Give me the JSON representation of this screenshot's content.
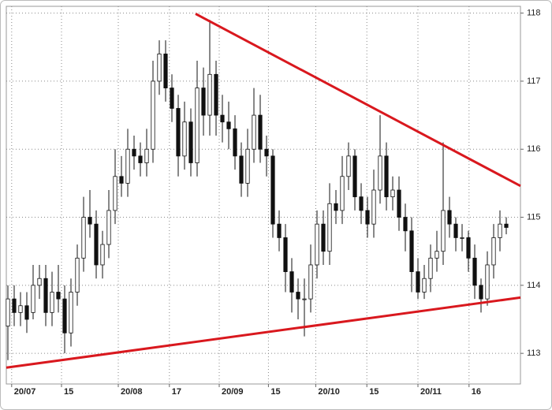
{
  "chart_data": {
    "type": "candlestick",
    "open": [
      113.4,
      113.8,
      113.6,
      113.7,
      113.6,
      114.0,
      114.1,
      113.6,
      113.9,
      113.8,
      113.3,
      113.9,
      114.4,
      115.0,
      114.9,
      114.3,
      114.6,
      115.1,
      115.6,
      115.5,
      116.0,
      115.9,
      115.8,
      116.0,
      117.0,
      117.4,
      116.9,
      116.6,
      115.9,
      116.4,
      115.8,
      116.9,
      116.5,
      117.1,
      116.5,
      116.4,
      116.3,
      115.9,
      115.5,
      116.0,
      116.5,
      116.0,
      115.9,
      114.9,
      114.7,
      114.2,
      113.9,
      113.8,
      113.8,
      114.3,
      114.9,
      114.5,
      115.2,
      115.1,
      115.6,
      115.9,
      115.3,
      115.1,
      114.9,
      115.4,
      115.9,
      115.3,
      115.4,
      115.0,
      114.8,
      114.2,
      113.9,
      114.1,
      114.4,
      114.5,
      115.1,
      114.9,
      114.7,
      114.7,
      114.4,
      114.0,
      113.8,
      114.3,
      114.7,
      114.9
    ],
    "high": [
      114.0,
      114.0,
      113.9,
      113.9,
      114.3,
      114.3,
      114.3,
      114.2,
      114.3,
      114.0,
      114.1,
      114.6,
      115.3,
      115.4,
      115.1,
      114.8,
      115.4,
      116.0,
      115.9,
      116.3,
      116.2,
      116.1,
      116.3,
      117.3,
      117.6,
      117.6,
      117.1,
      116.8,
      116.7,
      116.6,
      117.3,
      117.2,
      117.9,
      117.3,
      116.8,
      116.7,
      116.5,
      116.1,
      116.3,
      116.9,
      116.8,
      116.2,
      116.0,
      115.1,
      114.9,
      114.4,
      114.1,
      114.1,
      114.6,
      115.1,
      115.1,
      115.5,
      115.4,
      115.9,
      116.1,
      116.0,
      115.5,
      115.3,
      115.7,
      116.5,
      116.1,
      115.6,
      115.6,
      115.2,
      115.0,
      114.4,
      114.3,
      114.6,
      114.8,
      116.1,
      115.3,
      115.0,
      114.9,
      114.8,
      114.6,
      114.1,
      114.5,
      114.9,
      115.1,
      115.0
    ],
    "low": [
      112.9,
      113.4,
      113.4,
      113.3,
      113.5,
      113.8,
      113.4,
      113.4,
      113.6,
      113.0,
      113.1,
      113.7,
      114.2,
      114.7,
      114.1,
      114.1,
      114.4,
      114.9,
      115.3,
      115.3,
      115.7,
      115.6,
      115.6,
      115.8,
      116.8,
      116.7,
      116.4,
      115.6,
      115.7,
      115.6,
      115.6,
      116.2,
      116.2,
      116.2,
      116.1,
      116.0,
      115.7,
      115.3,
      115.3,
      115.8,
      115.8,
      115.6,
      114.7,
      114.5,
      113.9,
      113.6,
      113.5,
      113.25,
      113.6,
      114.1,
      114.3,
      114.3,
      114.9,
      114.9,
      115.4,
      115.1,
      114.9,
      114.7,
      114.7,
      115.2,
      115.1,
      115.1,
      114.8,
      114.5,
      113.9,
      113.8,
      113.8,
      113.9,
      114.2,
      114.3,
      114.7,
      114.5,
      114.5,
      114.2,
      113.8,
      113.6,
      113.7,
      114.1,
      114.5,
      114.75
    ],
    "close": [
      113.8,
      113.6,
      113.7,
      113.5,
      114.0,
      114.1,
      113.6,
      113.9,
      113.8,
      113.3,
      113.9,
      114.4,
      115.0,
      114.9,
      114.3,
      114.6,
      115.1,
      115.6,
      115.5,
      116.0,
      115.9,
      115.8,
      116.0,
      117.0,
      117.4,
      116.9,
      116.6,
      115.9,
      116.4,
      115.8,
      116.9,
      116.5,
      117.1,
      116.5,
      116.4,
      116.3,
      115.9,
      115.5,
      116.0,
      116.5,
      116.0,
      115.9,
      114.9,
      114.7,
      114.2,
      113.9,
      113.8,
      113.8,
      114.3,
      114.9,
      114.5,
      115.2,
      115.1,
      115.6,
      115.9,
      115.3,
      115.1,
      114.9,
      115.4,
      115.9,
      115.3,
      115.4,
      115.0,
      114.8,
      114.2,
      113.9,
      114.1,
      114.4,
      114.5,
      115.1,
      114.9,
      114.7,
      114.7,
      114.4,
      114.0,
      113.8,
      114.3,
      114.7,
      114.9,
      114.85
    ],
    "up_color": "#ffffff",
    "down_color": "#111111",
    "xlim": [
      -0.25,
      81.25
    ],
    "xticks": [
      {
        "value": 0.6,
        "label": "20/07"
      },
      {
        "value": 8.5,
        "label": "15"
      },
      {
        "value": 17.5,
        "label": "20/08"
      },
      {
        "value": 25.6,
        "label": "17"
      },
      {
        "value": 33.5,
        "label": "20/09"
      },
      {
        "value": 41.3,
        "label": "15"
      },
      {
        "value": 48.8,
        "label": "20/10"
      },
      {
        "value": 56.9,
        "label": "15"
      },
      {
        "value": 65,
        "label": "20/11"
      },
      {
        "value": 73.1,
        "label": "16"
      }
    ],
    "ylim": [
      112.55,
      118.1
    ],
    "yticks": [
      113,
      114,
      115,
      116,
      117,
      118
    ],
    "grid": true,
    "trend_lines": [
      {
        "color": "#d9181e",
        "start": [
          29.75,
          117.99
        ],
        "end": [
          81.25,
          115.46
        ]
      },
      {
        "color": "#d9181e",
        "start": [
          -0.25,
          112.79
        ],
        "end": [
          81.25,
          113.82
        ]
      }
    ]
  }
}
